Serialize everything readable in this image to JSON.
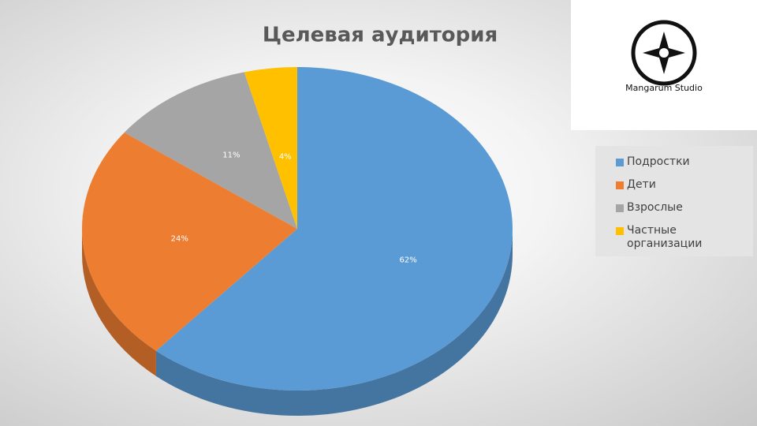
{
  "chart_data": {
    "type": "pie",
    "title": "Целевая аудитория",
    "categories": [
      "Подростки",
      "Дети",
      "Взрослые",
      "Частные организации"
    ],
    "values": [
      62,
      24,
      11,
      4
    ],
    "value_labels": [
      "62%",
      "24%",
      "11%",
      "4%"
    ],
    "colors": [
      "#5b9bd5",
      "#ed7d31",
      "#a5a5a5",
      "#ffc000"
    ],
    "legend": "right"
  },
  "logo": {
    "text": "Mangarum Studio"
  }
}
